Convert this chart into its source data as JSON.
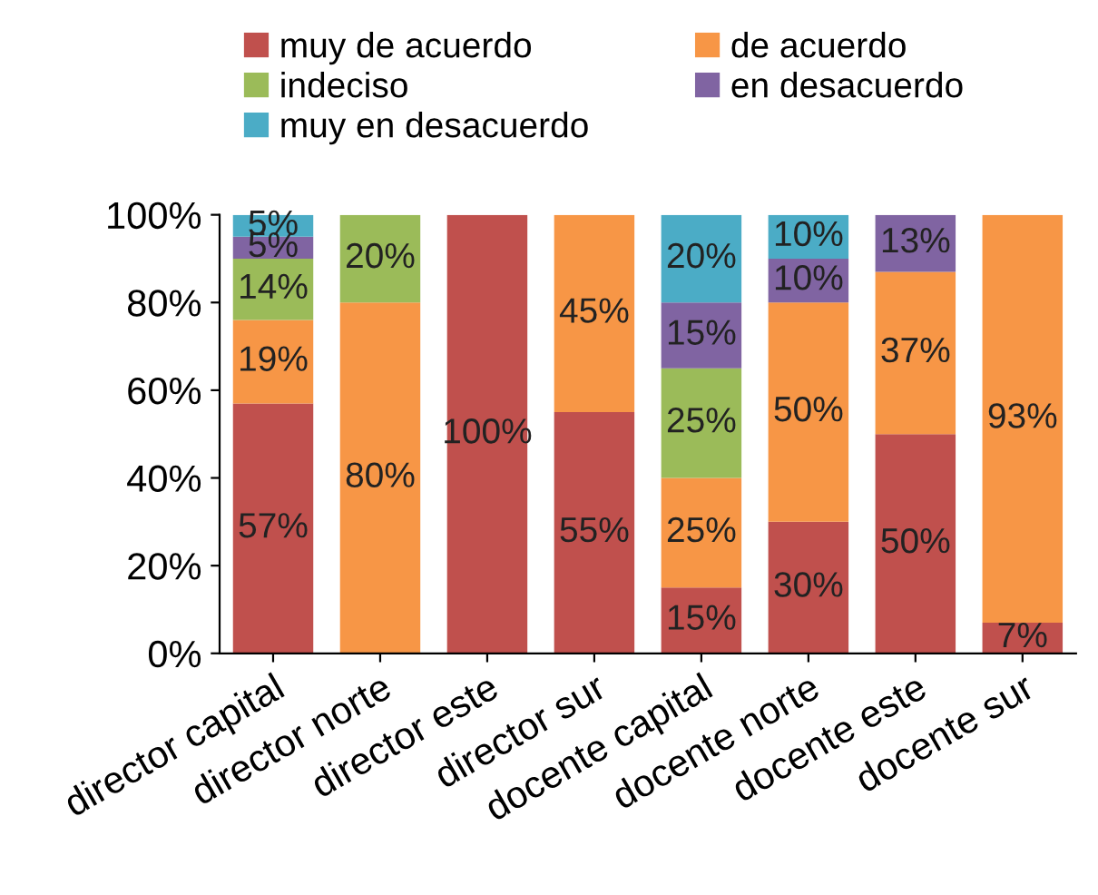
{
  "chart_data": {
    "type": "bar",
    "stacked": true,
    "categories": [
      "director capital",
      "director norte",
      "director este",
      "director sur",
      "docente capital",
      "docente norte",
      "docente este",
      "docente sur"
    ],
    "series": [
      {
        "name": "muy de acuerdo",
        "color": "#c0504d",
        "values": [
          57,
          0,
          100,
          55,
          15,
          30,
          50,
          7
        ],
        "value_labels": [
          "57%",
          null,
          "100%",
          "55%",
          "15%",
          "30%",
          "50%",
          "7%"
        ]
      },
      {
        "name": "de acuerdo",
        "color": "#f79646",
        "values": [
          19,
          80,
          0,
          45,
          25,
          50,
          37,
          93
        ],
        "value_labels": [
          "19%",
          "80%",
          null,
          "45%",
          "25%",
          "50%",
          "37%",
          "93%"
        ]
      },
      {
        "name": "indeciso",
        "color": "#9bbb59",
        "values": [
          14,
          20,
          0,
          0,
          25,
          0,
          0,
          0
        ],
        "value_labels": [
          "14%",
          "20%",
          null,
          null,
          "25%",
          null,
          null,
          null
        ]
      },
      {
        "name": "en desacuerdo",
        "color": "#8064a2",
        "values": [
          5,
          0,
          0,
          0,
          15,
          10,
          13,
          0
        ],
        "value_labels": [
          "5%",
          null,
          null,
          null,
          "15%",
          "10%",
          "13%",
          null
        ]
      },
      {
        "name": "muy en desacuerdo",
        "color": "#4bacc6",
        "values": [
          5,
          0,
          0,
          0,
          20,
          10,
          0,
          0
        ],
        "value_labels": [
          "5%",
          null,
          null,
          null,
          "20%",
          "10%",
          null,
          null
        ]
      }
    ],
    "ylim": [
      0,
      100
    ],
    "yticks": [
      {
        "value": 0,
        "label": "0%"
      },
      {
        "value": 20,
        "label": "20%"
      },
      {
        "value": 40,
        "label": "40%"
      },
      {
        "value": 60,
        "label": "60%"
      },
      {
        "value": 80,
        "label": "80%"
      },
      {
        "value": 100,
        "label": "100%"
      }
    ],
    "legend": "top",
    "grid": false
  }
}
